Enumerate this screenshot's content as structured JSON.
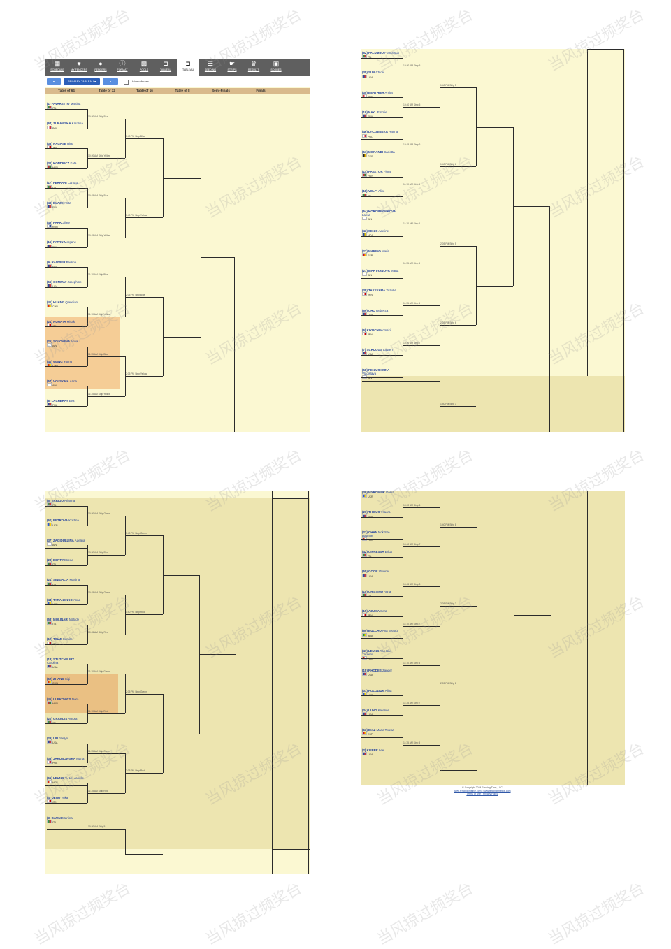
{
  "toolbar": {
    "buttons": [
      {
        "label": "SCHEDULE",
        "icon": "calendar-icon",
        "glyph": "▦"
      },
      {
        "label": "MY FENCERS",
        "icon": "heart-icon",
        "glyph": "♥"
      },
      {
        "label": "FENCERS",
        "icon": "person-icon",
        "glyph": "●"
      },
      {
        "label": "FORMAT",
        "icon": "info-icon",
        "glyph": "ⓘ"
      },
      {
        "label": "POOLS",
        "icon": "grid-icon",
        "glyph": "▩"
      },
      {
        "label": "TABLEAU",
        "icon": "tableau-icon",
        "glyph": "⊐"
      },
      {
        "label": "TABLEAU",
        "icon": "tableau-icon",
        "glyph": "⊐"
      },
      {
        "label": "SEEDING",
        "icon": "list-icon",
        "glyph": "☰"
      },
      {
        "label": "STRIPS",
        "icon": "hand-icon",
        "glyph": "☛"
      },
      {
        "label": "RESULTS",
        "icon": "trophy-icon",
        "glyph": "♛"
      },
      {
        "label": "SCORES",
        "icon": "scores-icon",
        "glyph": "▣"
      }
    ]
  },
  "controls": {
    "primary_label": "PRIMARY TABLEAU ▾",
    "hide_referees": "Hide referees"
  },
  "rounds": [
    "Table of 64",
    "Table of 32",
    "Table of 16",
    "Table of 8",
    "Semi-Finals",
    "Finals"
  ],
  "brackets": [
    {
      "fencers": [
        {
          "seed": "(1)",
          "last": "FAVARETTO",
          "first": "Martina",
          "country": "ITA",
          "c1": "#2d9b48",
          "c2": "#d23a3a"
        },
        {
          "seed": "(64)",
          "last": "ZURAWSKA",
          "first": "Karolina",
          "country": "POL",
          "c1": "#ffffff",
          "c2": "#d2283a"
        },
        {
          "seed": "(33)",
          "last": "NAGASE",
          "first": "Rino",
          "country": "JPN",
          "c1": "#ffffff",
          "c2": "#cc0000"
        },
        {
          "seed": "(32)",
          "last": "KONDRICZ",
          "first": "Kata",
          "country": "HUN",
          "c1": "#cc2d3a",
          "c2": "#3a8a3a"
        },
        {
          "seed": "(17)",
          "last": "FERRARI",
          "first": "Carlotta",
          "country": "ITA",
          "c1": "#2d9b48",
          "c2": "#d23a3a"
        },
        {
          "seed": "(48)",
          "last": "BLAZE",
          "first": "Anita",
          "country": "FRA",
          "c1": "#2a4fa0",
          "c2": "#d23a3a"
        },
        {
          "seed": "(49)",
          "last": "PARK",
          "first": "Jihee",
          "country": "KOR",
          "c1": "#ffffff",
          "c2": "#2a4fa0"
        },
        {
          "seed": "(16)",
          "last": "PATRU",
          "first": "Morgane",
          "country": "FRA",
          "c1": "#2a4fa0",
          "c2": "#d23a3a"
        },
        {
          "seed": "(9)",
          "last": "RANVIER",
          "first": "Pauline",
          "country": "FRA",
          "c1": "#2a4fa0",
          "c2": "#d23a3a"
        },
        {
          "seed": "(56)",
          "last": "CONWAY",
          "first": "Josephine",
          "country": "USA",
          "c1": "#2a4fa0",
          "c2": "#d23a3a"
        },
        {
          "seed": "(41)",
          "last": "HUANG",
          "first": "Qianqian",
          "country": "CHN",
          "c1": "#de2910",
          "c2": "#ffde00"
        },
        {
          "seed": "(24)",
          "last": "NUMATA",
          "first": "Misaki",
          "country": "JPN",
          "c1": "#ffffff",
          "c2": "#cc0000"
        },
        {
          "seed": "(25)",
          "last": "SOLOVEVA",
          "first": "Anna",
          "country": "AIN",
          "c1": "#ffffff",
          "c2": "#ffffff"
        },
        {
          "seed": "(40)",
          "last": "WANG",
          "first": "Yuting",
          "country": "CHN",
          "c1": "#de2910",
          "c2": "#ffde00"
        },
        {
          "seed": "(57)",
          "last": "VOLSKAIA",
          "first": "Arina",
          "country": "AIN",
          "c1": "#ffffff",
          "c2": "#ffffff"
        },
        {
          "seed": "(8)",
          "last": "LACHERAY",
          "first": "Eva",
          "country": "FRA",
          "c1": "#2a4fa0",
          "c2": "#d23a3a"
        }
      ],
      "r1": [
        "10:20 AM Strip Blue",
        "10:20 AM Strip Yellow",
        "10:45 AM Strip Blue",
        "10:45 AM Strip Yellow",
        "11:10 AM Strip Blue",
        "11:10 AM Strip Yellow",
        "11:35 AM Strip Blue",
        "11:35 AM Strip Yellow"
      ],
      "r2": [
        "1:40 PM Strip Blue",
        "1:40 PM Strip Yellow",
        "2:05 PM Strip Blue",
        "2:05 PM Strip Yellow"
      ]
    },
    {
      "fencers": [
        {
          "seed": "(62)",
          "last": "PALUMBO",
          "first": "Francesca",
          "country": "ITA",
          "c1": "#2d9b48",
          "c2": "#d23a3a"
        },
        {
          "seed": "(35)",
          "last": "SUN",
          "first": "Chloe",
          "country": "USA",
          "c1": "#2a4fa0",
          "c2": "#d23a3a"
        },
        {
          "seed": "(30)",
          "last": "BERTHIER",
          "first": "Amita",
          "country": "SGP",
          "c1": "#e0303a",
          "c2": "#ffffff"
        },
        {
          "seed": "(19)",
          "last": "NAYL",
          "first": "Emmie",
          "country": "FRA",
          "c1": "#2a4fa0",
          "c2": "#d23a3a"
        },
        {
          "seed": "(46)",
          "last": "LYCZBINSKA",
          "first": "Hanna",
          "country": "POL",
          "c1": "#ffffff",
          "c2": "#d2283a"
        },
        {
          "seed": "(51)",
          "last": "MORANDI",
          "first": "Carlotta",
          "country": "GER",
          "c1": "#222222",
          "c2": "#e8b400"
        },
        {
          "seed": "(14)",
          "last": "PASZTOR",
          "first": "Flora",
          "country": "HUN",
          "c1": "#cc2d3a",
          "c2": "#3a8a3a"
        },
        {
          "seed": "(11)",
          "last": "VOLPI",
          "first": "Alice",
          "country": "ITA",
          "c1": "#2d9b48",
          "c2": "#d23a3a"
        },
        {
          "seed": "(54)",
          "last": "KOROBEYNIKOVA",
          "first": "Larisa",
          "country": "AIN",
          "c1": "#ffffff",
          "c2": "#ffffff"
        },
        {
          "seed": "(43)",
          "last": "SENIC",
          "first": "Adeline",
          "country": "MDA",
          "c1": "#2a4fa0",
          "c2": "#e8c400"
        },
        {
          "seed": "(22)",
          "last": "MARINO",
          "first": "Maria",
          "country": "ESP",
          "c1": "#c8102e",
          "c2": "#ffc400"
        },
        {
          "seed": "(27)",
          "last": "MARTYANOVA",
          "first": "Marta",
          "country": "AIN",
          "c1": "#ffffff",
          "c2": "#ffffff"
        },
        {
          "seed": "(38)",
          "last": "TAKEYAMA",
          "first": "Yuzuha",
          "country": "JPN",
          "c1": "#ffffff",
          "c2": "#cc0000"
        },
        {
          "seed": "(59)",
          "last": "CHO",
          "first": "Rebecca",
          "country": "USA",
          "c1": "#2a4fa0",
          "c2": "#d23a3a"
        },
        {
          "seed": "(6)",
          "last": "KIKUCHI",
          "first": "Komaki",
          "country": "JPN",
          "c1": "#ffffff",
          "c2": "#cc0000"
        },
        {
          "seed": "(7)",
          "last": "SCRUGGS",
          "first": "Lauren",
          "country": "USA",
          "c1": "#2a4fa0",
          "c2": "#d23a3a"
        },
        {
          "seed": "(58)",
          "last": "PENIUSHKINA",
          "first": "Vladislava",
          "country": "AIN",
          "c1": "#ffffff",
          "c2": "#ffffff"
        }
      ],
      "r1": [
        "10:20 AM Strip 5",
        "10:40 AM Strip 5",
        "10:45 AM Strip 6",
        "11:10 AM Strip 5",
        "11:10 AM Strip 6",
        "11:35 AM Strip 5",
        "11:35 AM Strip 6",
        "10:20 AM Strip 7"
      ],
      "r2": [
        "1:40 PM Strip 5",
        "1:40 PM Strip 6",
        "2:05 PM Strip 5",
        "2:05 PM Strip 6",
        "1:40 PM Strip 7"
      ]
    },
    {
      "fencers": [
        {
          "seed": "(5)",
          "last": "ERRIGO",
          "first": "Arianna",
          "country": "ITA",
          "c1": "#2d9b48",
          "c2": "#d23a3a"
        },
        {
          "seed": "(60)",
          "last": "PETROVA",
          "first": "Kristina",
          "country": "UKR",
          "c1": "#2a5bd7",
          "c2": "#ffd500"
        },
        {
          "seed": "(37)",
          "last": "ZAGIDULLINA",
          "first": "Adelina",
          "country": "AIN",
          "c1": "#ffffff",
          "c2": "#ffffff"
        },
        {
          "seed": "(28)",
          "last": "BERTINI",
          "first": "Irene",
          "country": "ITA",
          "c1": "#2d9b48",
          "c2": "#d23a3a"
        },
        {
          "seed": "(21)",
          "last": "SINIGALIA",
          "first": "Martina",
          "country": "ITA",
          "c1": "#2d9b48",
          "c2": "#d23a3a"
        },
        {
          "seed": "(44)",
          "last": "TARANENKO",
          "first": "Anna",
          "country": "UKR",
          "c1": "#2a5bd7",
          "c2": "#ffd500"
        },
        {
          "seed": "(53)",
          "last": "MOLINARI",
          "first": "Matilde",
          "country": "ITA",
          "c1": "#2d9b48",
          "c2": "#d23a3a"
        },
        {
          "seed": "(12)",
          "last": "TSUJI",
          "first": "Sumire",
          "country": "JPN",
          "c1": "#ffffff",
          "c2": "#cc0000"
        },
        {
          "seed": "(13)",
          "last": "STUTCHBURY",
          "first": "Carolina",
          "country": "USA",
          "c1": "#2a4fa0",
          "c2": "#d23a3a"
        },
        {
          "seed": "(52)",
          "last": "ZHANG",
          "first": "Siqi",
          "country": "CHN",
          "c1": "#de2910",
          "c2": "#ffde00"
        },
        {
          "seed": "(45)",
          "last": "LUPKOVICS",
          "first": "Dora",
          "country": "HUN",
          "c1": "#cc2d3a",
          "c2": "#3a8a3a"
        },
        {
          "seed": "(20)",
          "last": "GRANDIS",
          "first": "Aurora",
          "country": "ITA",
          "c1": "#2d9b48",
          "c2": "#d23a3a"
        },
        {
          "seed": "(29)",
          "last": "LIU",
          "first": "Jaelyn",
          "country": "USA",
          "c1": "#2a4fa0",
          "c2": "#d23a3a"
        },
        {
          "seed": "(36)",
          "last": "JAKUBOWSKA",
          "first": "Marta",
          "country": "POL",
          "c1": "#ffffff",
          "c2": "#d2283a"
        },
        {
          "seed": "(61)",
          "last": "LEUNG",
          "first": "Yu Lei Janelle",
          "country": "HKG",
          "c1": "#de2910",
          "c2": "#ffffff"
        },
        {
          "seed": "(4)",
          "last": "UENO",
          "first": "Yuka",
          "country": "JPN",
          "c1": "#ffffff",
          "c2": "#cc0000"
        },
        {
          "seed": "(3)",
          "last": "BATINI",
          "first": "Martina",
          "country": "ITA",
          "c1": "#2d9b48",
          "c2": "#d23a3a"
        }
      ],
      "r1": [
        "10:20 AM Strip Green",
        "10:20 AM Strip Red",
        "10:45 AM Strip Green",
        "10:45 AM Strip Red",
        "11:10 AM Strip Green",
        "11:10 AM Strip Red",
        "11:35 AM Strip Green",
        "11:35 AM Strip Red",
        "10:20 AM Strip 5"
      ],
      "r2": [
        "1:40 PM Strip Green",
        "1:40 PM Strip Red",
        "2:05 PM Strip Green",
        "2:05 PM Strip Red"
      ]
    },
    {
      "fencers": [
        {
          "seed": "(39)",
          "last": "MYRONIUK",
          "first": "Dariia",
          "country": "UKR",
          "c1": "#2a5bd7",
          "c2": "#ffd500"
        },
        {
          "seed": "(26)",
          "last": "THIBUS",
          "first": "Ysaora",
          "country": "FRA",
          "c1": "#2a4fa0",
          "c2": "#d23a3a"
        },
        {
          "seed": "(23)",
          "last": "CHAN",
          "first": "Nok Sze Daphne",
          "country": "HKG",
          "c1": "#de2910",
          "c2": "#ffffff"
        },
        {
          "seed": "(42)",
          "last": "CIPRESSA",
          "first": "Erica",
          "country": "ITA",
          "c1": "#2d9b48",
          "c2": "#d23a3a"
        },
        {
          "seed": "(55)",
          "last": "GOOR",
          "first": "Viviene",
          "country": "USA",
          "c1": "#2a4fa0",
          "c2": "#d23a3a"
        },
        {
          "seed": "(10)",
          "last": "CRISTINO",
          "first": "Anna",
          "country": "ITA",
          "c1": "#2d9b48",
          "c2": "#d23a3a"
        },
        {
          "seed": "(15)",
          "last": "AZUMA",
          "first": "Sera",
          "country": "JPN",
          "c1": "#ffffff",
          "c2": "#cc0000"
        },
        {
          "seed": "(50)",
          "last": "BULCAO",
          "first": "Ana Beatriz",
          "country": "BRA",
          "c1": "#1f9e3a",
          "c2": "#f4d000"
        },
        {
          "seed": "(47)",
          "last": "LEUNG",
          "first": "Yan Kiu Zareena",
          "country": "HKG",
          "c1": "#de2910",
          "c2": "#ffffff"
        },
        {
          "seed": "(18)",
          "last": "RHODES",
          "first": "Zander",
          "country": "USA",
          "c1": "#2a4fa0",
          "c2": "#d23a3a"
        },
        {
          "seed": "(31)",
          "last": "POLOZIUK",
          "first": "Alina",
          "country": "UKR",
          "c1": "#2a5bd7",
          "c2": "#ffd500"
        },
        {
          "seed": "(34)",
          "last": "LUNG",
          "first": "Katerina",
          "country": "USA",
          "c1": "#2a4fa0",
          "c2": "#d23a3a"
        },
        {
          "seed": "(63)",
          "last": "DIAZ",
          "first": "Maria Teresa",
          "country": "ESP",
          "c1": "#c8102e",
          "c2": "#ffc400"
        },
        {
          "seed": "(2)",
          "last": "KIEFER",
          "first": "Lee",
          "country": "USA",
          "c1": "#2a4fa0",
          "c2": "#d23a3a"
        }
      ],
      "r1": [
        "10:20 AM Strip 6",
        "10:40 AM Strip 7",
        "10:45 AM Strip 8",
        "11:10 AM Strip 7",
        "11:10 AM Strip 8",
        "11:35 AM Strip 7",
        "11:35 AM Strip 8"
      ],
      "r2": [
        "1:40 PM Strip 8",
        "2:05 PM Strip 7",
        "2:05 PM Strip 8"
      ]
    }
  ],
  "footer": {
    "line1": "© Copyright 2024 Fencing Time, LLC",
    "line2": "www.fencingtimelive.com | www.fencingtimelive.com",
    "line3": "Terms of Use | Privacy Policy"
  },
  "watermark": "当风掠过频奖台"
}
